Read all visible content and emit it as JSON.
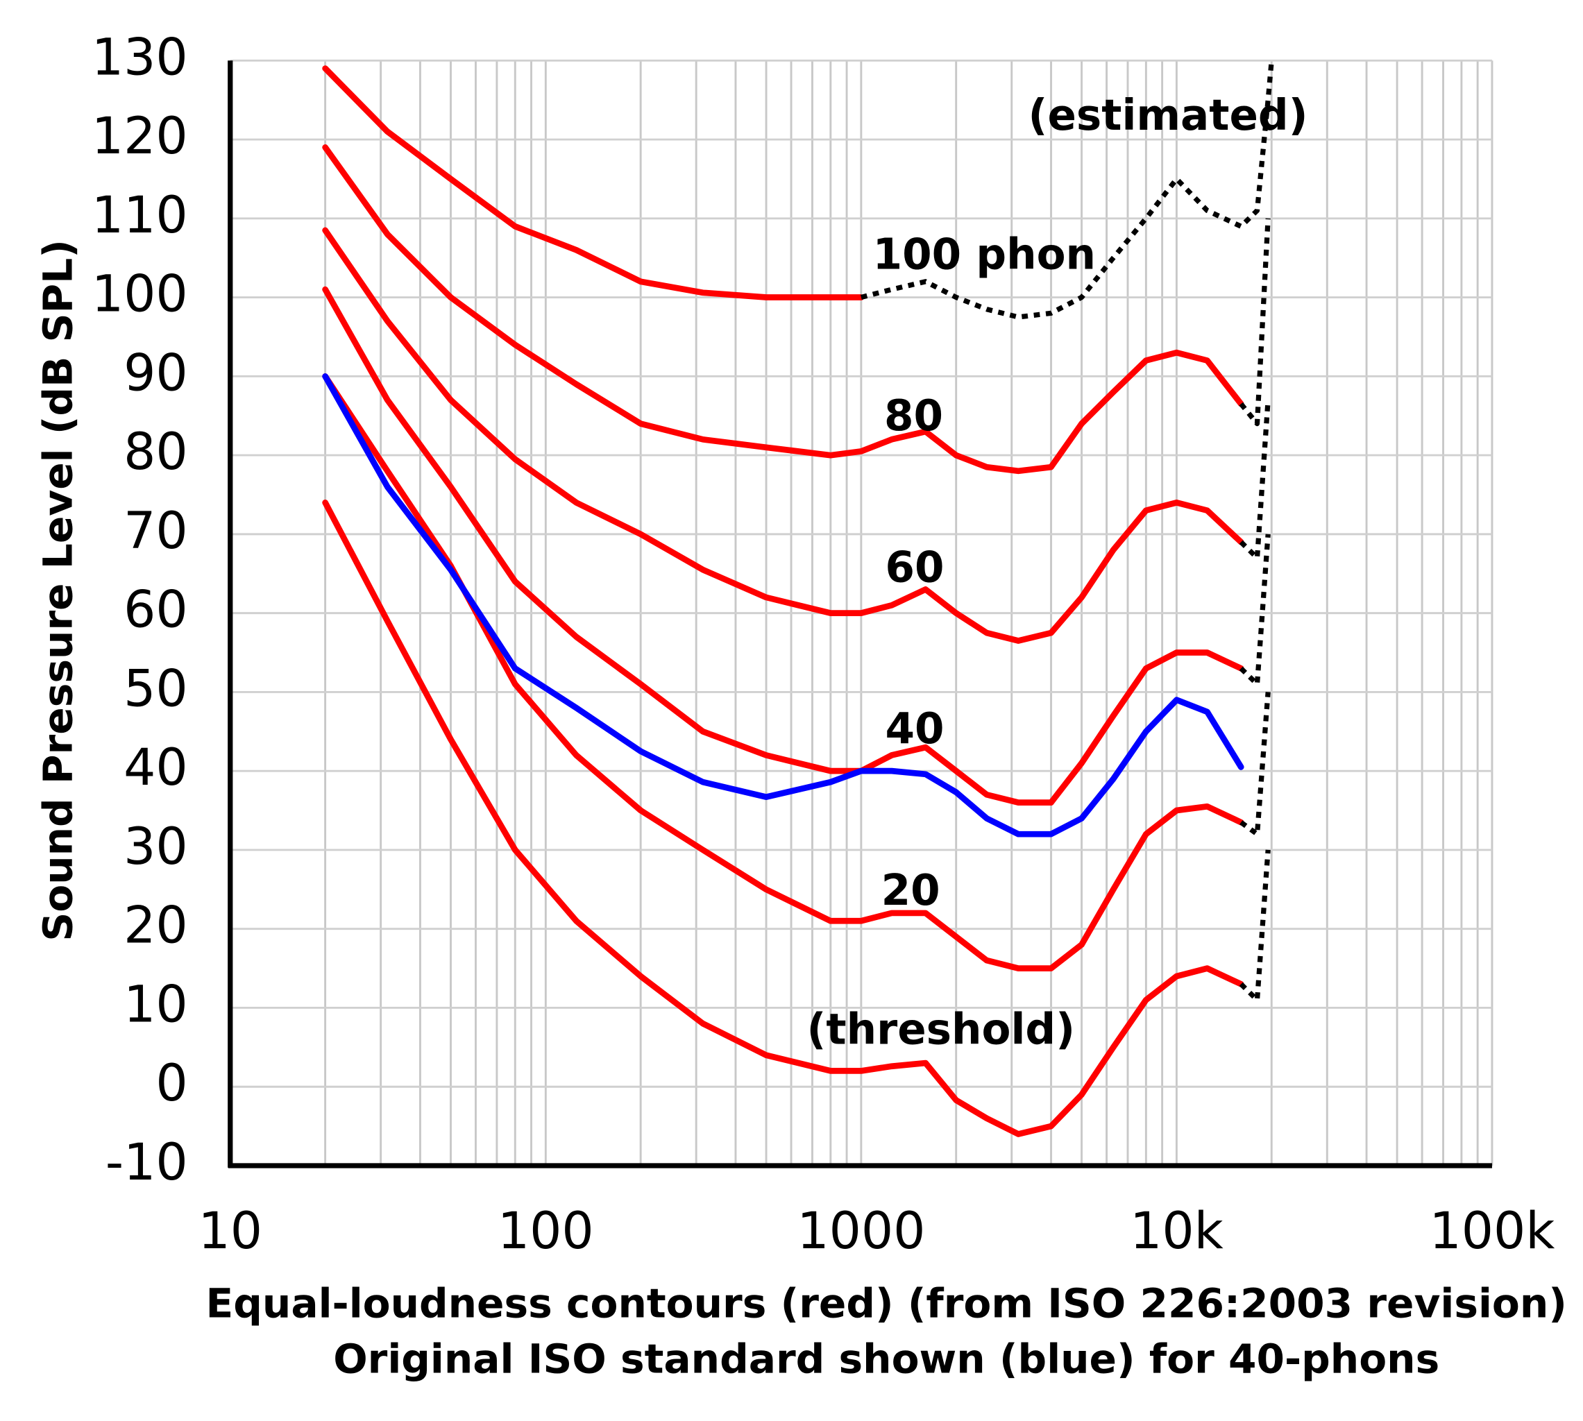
{
  "chart_data": {
    "type": "line",
    "x_label": [
      "Equal-loudness contours (red) (from ISO 226:2003 revision)",
      "Original ISO standard shown (blue) for 40-phons"
    ],
    "y_label": "Sound Pressure Level (dB SPL)",
    "xscale": "log",
    "xlim": [
      10,
      100000
    ],
    "xticks": [
      10,
      100,
      1000,
      {
        "value": 10000,
        "label": "10k"
      },
      {
        "value": 100000,
        "label": "100k"
      }
    ],
    "ylim": [
      -10,
      130
    ],
    "yticks": [
      -10,
      0,
      10,
      20,
      30,
      40,
      50,
      60,
      70,
      80,
      90,
      100,
      110,
      120,
      130
    ],
    "grid": true,
    "annotations": [
      "(estimated)",
      "100 phon",
      "80",
      "60",
      "40",
      "20",
      "(threshold)"
    ],
    "series": [
      {
        "color": "#ff0000",
        "dashed": false,
        "x": [
          20,
          31.5,
          50,
          80,
          125,
          200,
          315,
          500,
          800,
          1000,
          1250,
          1600,
          2000,
          2500,
          3150,
          4000,
          5000,
          6300,
          8000,
          10000,
          12500,
          16000
        ],
        "values": [
          74,
          59,
          44,
          30,
          21,
          14,
          8,
          4,
          2,
          2,
          2.6,
          3,
          -1.7,
          -4,
          -6,
          -5,
          -1,
          5,
          11,
          14,
          15,
          13
        ]
      },
      {
        "color": "#ff0000",
        "dashed": false,
        "x": [
          20,
          31.5,
          50,
          80,
          125,
          200,
          315,
          500,
          800,
          1000,
          1250,
          1600,
          2000,
          2500,
          3150,
          4000,
          5000,
          6300,
          8000,
          10000,
          12500,
          16000
        ],
        "values": [
          90,
          78,
          66,
          51,
          42,
          35,
          30,
          25,
          21,
          21,
          22,
          22,
          19,
          16,
          15,
          15,
          18,
          25,
          32,
          35,
          35.5,
          33.5
        ]
      },
      {
        "color": "#ff0000",
        "dashed": false,
        "x": [
          20,
          31.5,
          50,
          80,
          125,
          200,
          315,
          500,
          800,
          1000,
          1250,
          1600,
          2000,
          2500,
          3150,
          4000,
          5000,
          6300,
          8000,
          10000,
          12500,
          16000
        ],
        "values": [
          101,
          87,
          76,
          64,
          57,
          51,
          45,
          42,
          40,
          40,
          42,
          43,
          40,
          37,
          36,
          36,
          41,
          47,
          53,
          55,
          55,
          53
        ]
      },
      {
        "color": "#ff0000",
        "dashed": false,
        "x": [
          20,
          31.5,
          50,
          80,
          125,
          200,
          315,
          500,
          800,
          1000,
          1250,
          1600,
          2000,
          2500,
          3150,
          4000,
          5000,
          6300,
          8000,
          10000,
          12500,
          16000
        ],
        "values": [
          108.5,
          97,
          87,
          79.5,
          74,
          70,
          65.5,
          62,
          60,
          60,
          61,
          63,
          60,
          57.5,
          56.5,
          57.5,
          62,
          68,
          73,
          74,
          73,
          69
        ]
      },
      {
        "color": "#ff0000",
        "dashed": false,
        "x": [
          20,
          31.5,
          50,
          80,
          125,
          200,
          315,
          500,
          800,
          1000,
          1250,
          1600,
          2000,
          2500,
          3150,
          4000,
          5000,
          6300,
          8000,
          10000,
          12500,
          16000
        ],
        "values": [
          119,
          108,
          100,
          94,
          89,
          84,
          82,
          81,
          80,
          80.5,
          82,
          83,
          80,
          78.5,
          78,
          78.5,
          84,
          88,
          92,
          93,
          92,
          86.5
        ]
      },
      {
        "color": "#ff0000",
        "dashed": false,
        "x": [
          20,
          31.5,
          50,
          80,
          125,
          200,
          315,
          500,
          800,
          1000
        ],
        "values": [
          129,
          121,
          115,
          109,
          106,
          102,
          100.6,
          100,
          100,
          100
        ]
      },
      {
        "color": "#0000ff",
        "dashed": false,
        "x": [
          20,
          31.5,
          50,
          80,
          125,
          200,
          315,
          500,
          800,
          1000,
          1250,
          1600,
          2000,
          2500,
          3150,
          4000,
          5000,
          6300,
          8000,
          10000,
          12500,
          16000
        ],
        "values": [
          90,
          76,
          65.5,
          53,
          48,
          42.5,
          38.6,
          36.7,
          38.6,
          40,
          40,
          39.6,
          37.3,
          34,
          32,
          32,
          34,
          39,
          45,
          49,
          47.5,
          40.5
        ]
      },
      {
        "color": "#000000",
        "dashed": true,
        "x": [
          16000,
          18000,
          19500
        ],
        "values": [
          13,
          11,
          30
        ]
      },
      {
        "color": "#000000",
        "dashed": true,
        "x": [
          16000,
          18000,
          19500
        ],
        "values": [
          33.5,
          32,
          50
        ]
      },
      {
        "color": "#000000",
        "dashed": true,
        "x": [
          16000,
          18000,
          19500
        ],
        "values": [
          53,
          51,
          70
        ]
      },
      {
        "color": "#000000",
        "dashed": true,
        "x": [
          16000,
          18000,
          19500
        ],
        "values": [
          69,
          67,
          87
        ]
      },
      {
        "color": "#000000",
        "dashed": true,
        "x": [
          16000,
          18000,
          19500
        ],
        "values": [
          86.5,
          84,
          110
        ]
      },
      {
        "color": "#000000",
        "dashed": true,
        "x": [
          1000,
          1250,
          1600,
          2000,
          2500,
          3150,
          4000,
          5000,
          6300,
          8000,
          10000,
          12500,
          16000,
          18000,
          19500,
          20000
        ],
        "values": [
          100,
          101,
          102,
          100,
          98.5,
          97.5,
          98,
          100,
          105,
          110,
          115,
          111,
          109,
          111,
          125,
          130
        ]
      }
    ]
  }
}
